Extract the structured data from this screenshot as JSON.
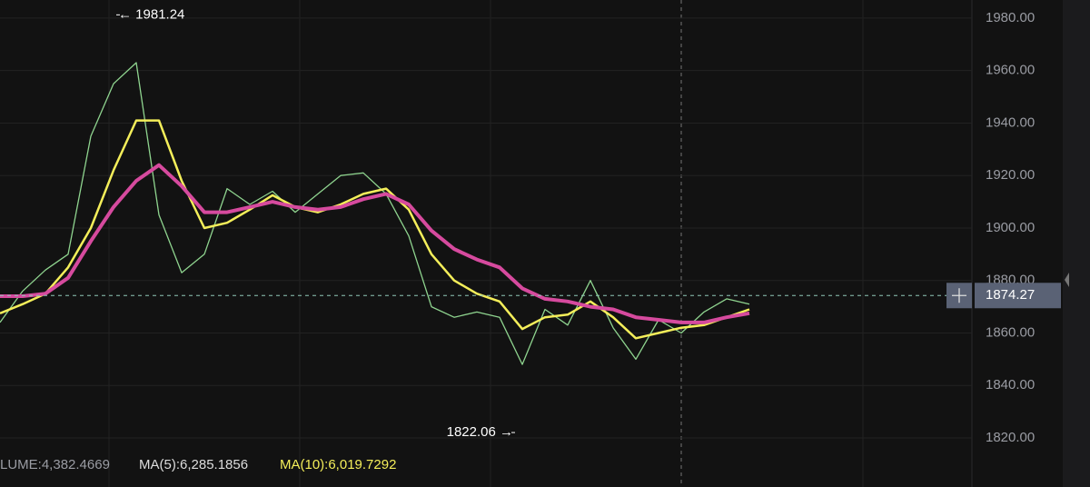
{
  "chart_data": {
    "type": "line",
    "x": [
      0,
      1,
      2,
      3,
      4,
      5,
      6,
      7,
      8,
      9,
      10,
      11,
      12,
      13,
      14,
      15,
      16,
      17,
      18,
      19,
      20,
      21,
      22,
      23,
      24,
      25,
      26,
      27,
      28,
      29,
      30,
      31,
      32,
      33
    ],
    "xlim": [
      0,
      42.8
    ],
    "ylim": [
      1801.3,
      1986.9
    ],
    "yticks": [
      {
        "value": 1820,
        "label": "1820.00"
      },
      {
        "value": 1840,
        "label": "1840.00"
      },
      {
        "value": 1860,
        "label": "1860.00"
      },
      {
        "value": 1880,
        "label": "1880.00"
      },
      {
        "value": 1900,
        "label": "1900.00"
      },
      {
        "value": 1920,
        "label": "1920.00"
      },
      {
        "value": 1940,
        "label": "1940.00"
      },
      {
        "value": 1960,
        "label": "1960.00"
      },
      {
        "value": 1980,
        "label": "1980.00"
      }
    ],
    "grid": true,
    "series": [
      {
        "color": "#8fd48f",
        "values": [
          1864,
          1876,
          1884,
          1890,
          1935,
          1955,
          1963,
          1905,
          1883,
          1890,
          1915,
          1909,
          1914,
          1906,
          1913,
          1920,
          1921,
          1913,
          1897,
          1870,
          1866,
          1868,
          1866,
          1848,
          1869,
          1863,
          1880,
          1862,
          1850,
          1865,
          1860,
          1868,
          1873,
          1871
        ]
      },
      {
        "color": "#f4ee5a",
        "values": [
          1867.5,
          1871,
          1875,
          1885,
          1900,
          1922,
          1941,
          1941,
          1918,
          1900,
          1902,
          1907,
          1912.5,
          1908,
          1906,
          1909,
          1913,
          1915,
          1907,
          1890,
          1880,
          1875,
          1872,
          1861.5,
          1866,
          1867,
          1872,
          1866,
          1858,
          1860,
          1862,
          1863,
          1866,
          1869
        ]
      },
      {
        "color": "#d64a9e",
        "values": [
          1874,
          1874,
          1875,
          1881,
          1895,
          1908,
          1918,
          1924,
          1916,
          1906,
          1906,
          1908,
          1910,
          1908,
          1907,
          1908,
          1911,
          1913,
          1909,
          1899,
          1892,
          1888,
          1885,
          1877,
          1873,
          1872,
          1870,
          1869,
          1866,
          1865,
          1864,
          1864,
          1866,
          1867.5
        ]
      }
    ],
    "current_price": 1874.27,
    "high": {
      "x": 5.2,
      "value": 1981.24,
      "label": "← 1981.24"
    },
    "low": {
      "x": 22.6,
      "value": 1822.06,
      "label": "1822.06 →"
    },
    "legend_texts": [
      "LUME:4,382.4669",
      "MA(5):6,285.1856",
      "MA(10):6,019.7292"
    ]
  }
}
